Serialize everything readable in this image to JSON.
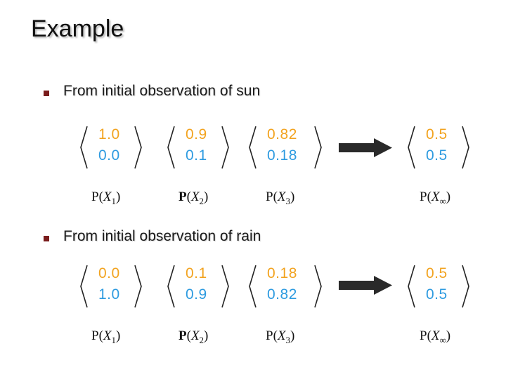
{
  "slide": {
    "title": "Example"
  },
  "sections": [
    {
      "bullet": "From initial observation of sun",
      "vectors": [
        {
          "sun": "1.0",
          "rain": "0.0"
        },
        {
          "sun": "0.9",
          "rain": "0.1"
        },
        {
          "sun": "0.82",
          "rain": "0.18"
        },
        {
          "sun": "0.5",
          "rain": "0.5"
        }
      ],
      "labels": [
        {
          "p": "P",
          "x": "X",
          "sub": "1"
        },
        {
          "p": "P",
          "x": "X",
          "sub": "2"
        },
        {
          "p": "P",
          "x": "X",
          "sub": "3"
        },
        {
          "p": "P",
          "x": "X",
          "sub": "∞"
        }
      ]
    },
    {
      "bullet": "From initial observation of rain",
      "vectors": [
        {
          "sun": "0.0",
          "rain": "1.0"
        },
        {
          "sun": "0.1",
          "rain": "0.9"
        },
        {
          "sun": "0.18",
          "rain": "0.82"
        },
        {
          "sun": "0.5",
          "rain": "0.5"
        }
      ],
      "labels": [
        {
          "p": "P",
          "x": "X",
          "sub": "1"
        },
        {
          "p": "P",
          "x": "X",
          "sub": "2"
        },
        {
          "p": "P",
          "x": "X",
          "sub": "3"
        },
        {
          "p": "P",
          "x": "X",
          "sub": "∞"
        }
      ]
    }
  ],
  "colors": {
    "sun": "#f2a31f",
    "rain": "#2e9be0",
    "bullet": "#7a1c1c",
    "arrow": "#2a2a2a"
  },
  "icons": {
    "bullet": "square-bullet-icon",
    "arrow": "right-arrow-icon"
  }
}
